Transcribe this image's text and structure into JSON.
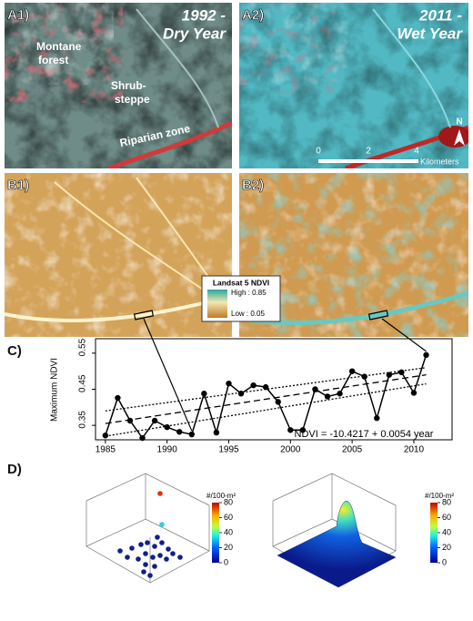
{
  "panels": {
    "a1": {
      "label": "A1)",
      "title": [
        "1992 -",
        "Dry Year"
      ],
      "annotations": [
        [
          "Montane",
          "forest"
        ],
        [
          "Shrub-",
          "steppe"
        ],
        [
          "Riparian zone"
        ]
      ]
    },
    "a2": {
      "label": "A2)",
      "title": [
        "2011 -",
        "Wet Year"
      ],
      "scale": [
        "0",
        "2",
        "4",
        "Kilometers"
      ],
      "north": "N"
    },
    "b1": {
      "label": "B1)"
    },
    "b2": {
      "label": "B2)"
    },
    "legend": {
      "title": "Landsat 5 NDVI",
      "high": "High : 0.85",
      "low": "Low : 0.05"
    },
    "d": {
      "label": "D)",
      "colorbar_title": "#/100-m²",
      "colorbar_ticks": [
        80,
        60,
        40,
        20,
        0
      ]
    }
  },
  "chart_data": {
    "type": "line",
    "label": "C)",
    "ylabel": "Maximum NDVI",
    "annotation": "NDVI = -10.4217 + 0.0054 year",
    "x": [
      1985,
      1986,
      1987,
      1988,
      1989,
      1990,
      1991,
      1992,
      1993,
      1994,
      1995,
      1996,
      1997,
      1998,
      1999,
      2000,
      2001,
      2002,
      2003,
      2004,
      2005,
      2006,
      2007,
      2008,
      2009,
      2010,
      2011
    ],
    "values": [
      0.322,
      0.426,
      0.363,
      0.315,
      0.363,
      0.345,
      0.332,
      0.325,
      0.438,
      0.33,
      0.466,
      0.438,
      0.461,
      0.456,
      0.415,
      0.337,
      0.337,
      0.45,
      0.43,
      0.438,
      0.5,
      0.485,
      0.37,
      0.49,
      0.497,
      0.44,
      0.545
    ],
    "color": "#000000",
    "fit": {
      "x": [
        1985,
        2011
      ],
      "values": [
        0.355,
        0.49
      ],
      "upper": [
        0.39,
        0.51
      ],
      "lower": [
        0.32,
        0.465
      ]
    },
    "xlim": [
      1984.2,
      2013.1
    ],
    "xticks": [
      1985,
      1990,
      1995,
      2000,
      2005,
      2010
    ],
    "ylim": [
      0.31,
      0.59
    ],
    "yticks": [
      0.35,
      0.45,
      0.55
    ],
    "grid": false
  }
}
